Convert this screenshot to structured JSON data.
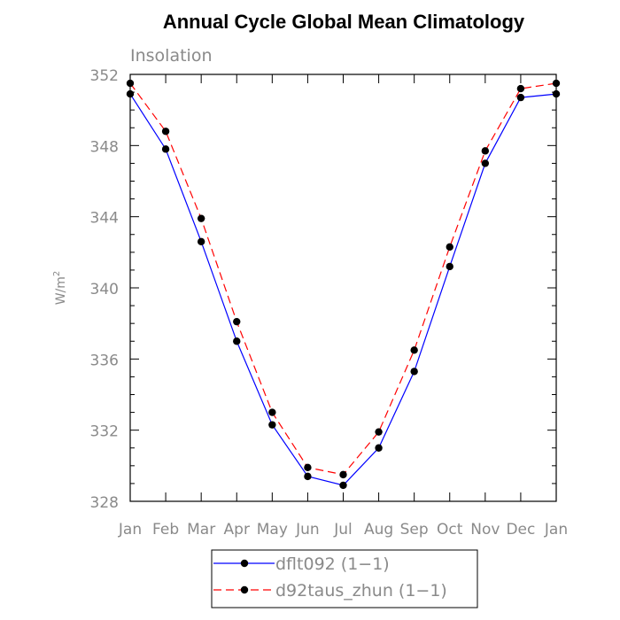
{
  "chart_data": {
    "type": "line",
    "title": "Annual Cycle Global Mean Climatology",
    "subtitle": "Insolation",
    "ylabel": "W/m",
    "ylabel_sup": "2",
    "xlabel": "",
    "categories": [
      "Jan",
      "Feb",
      "Mar",
      "Apr",
      "May",
      "Jun",
      "Jul",
      "Aug",
      "Sep",
      "Oct",
      "Nov",
      "Dec",
      "Jan"
    ],
    "ylim": [
      328,
      352
    ],
    "yticks": [
      328,
      332,
      336,
      340,
      344,
      348,
      352
    ],
    "grid": false,
    "legend_position": "bottom",
    "series": [
      {
        "name": "dflt092 (1−1)",
        "color": "#0000ff",
        "dash": "solid",
        "marker": "filled-circle",
        "values": [
          350.9,
          347.8,
          342.6,
          337.0,
          332.3,
          329.4,
          328.9,
          331.0,
          335.3,
          341.2,
          347.0,
          350.7,
          350.9
        ]
      },
      {
        "name": "d92taus_zhun (1−1)",
        "color": "#ff0000",
        "dash": "dashed",
        "marker": "filled-circle",
        "values": [
          351.5,
          348.8,
          343.9,
          338.1,
          333.0,
          329.9,
          329.5,
          331.9,
          336.5,
          342.3,
          347.7,
          351.2,
          351.5
        ]
      }
    ]
  }
}
